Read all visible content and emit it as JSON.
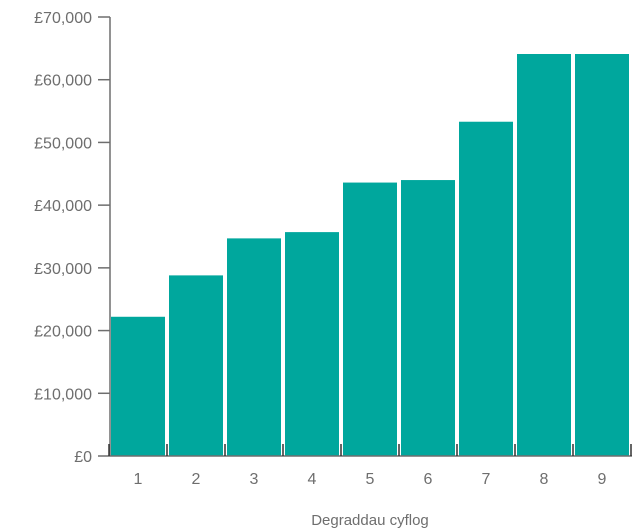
{
  "chart_data": {
    "type": "bar",
    "categories": [
      "1",
      "2",
      "3",
      "4",
      "5",
      "6",
      "7",
      "8",
      "9"
    ],
    "values": [
      22200,
      28800,
      34700,
      35700,
      43600,
      44000,
      53300,
      64100,
      64100
    ],
    "title": "",
    "xlabel": "Degraddau cyflog",
    "ylabel": "",
    "ylim": [
      0,
      70000
    ],
    "yticks": [
      0,
      10000,
      20000,
      30000,
      40000,
      50000,
      60000,
      70000
    ],
    "ytick_labels": [
      "£0",
      "£10,000",
      "£20,000",
      "£30,000",
      "£40,000",
      "£50,000",
      "£60,000",
      "£70,000"
    ],
    "grid": false,
    "colors": {
      "bar": "#00a79d",
      "axis": "#6e6e6e",
      "text": "#6e6e6e"
    }
  }
}
